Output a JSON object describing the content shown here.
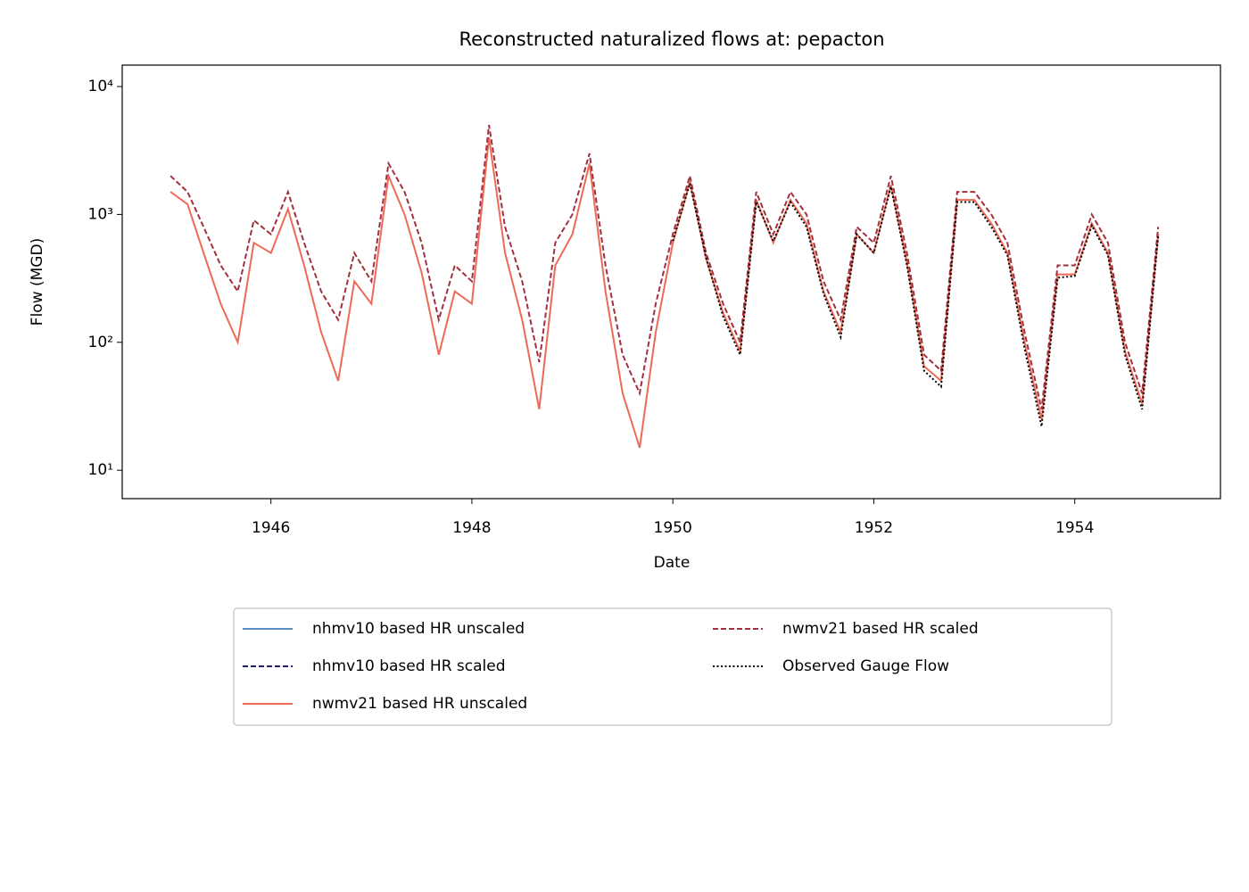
{
  "chart_data": {
    "type": "line",
    "title": "Reconstructed naturalized flows at: pepacton",
    "xlabel": "Date",
    "ylabel": "Flow (MGD)",
    "log_y": true,
    "xlim": [
      1944.52,
      1955.45
    ],
    "xticks": [
      1946,
      1948,
      1950,
      1952,
      1954
    ],
    "ylim": [
      6,
      14700
    ],
    "yticks": [
      {
        "value": 10,
        "label": "10¹"
      },
      {
        "value": 100,
        "label": "10²"
      },
      {
        "value": 1000,
        "label": "10³"
      },
      {
        "value": 10000,
        "label": "10⁴"
      }
    ],
    "legend": "lower center",
    "x": [
      1945.0,
      1945.17,
      1945.33,
      1945.5,
      1945.67,
      1945.83,
      1946.0,
      1946.17,
      1946.33,
      1946.5,
      1946.67,
      1946.83,
      1947.0,
      1947.17,
      1947.33,
      1947.5,
      1947.67,
      1947.83,
      1948.0,
      1948.17,
      1948.33,
      1948.5,
      1948.67,
      1948.83,
      1949.0,
      1949.17,
      1949.33,
      1949.5,
      1949.67,
      1949.83,
      1950.0,
      1950.17,
      1950.33,
      1950.5,
      1950.67,
      1950.83,
      1951.0,
      1951.17,
      1951.33,
      1951.5,
      1951.67,
      1951.83,
      1952.0,
      1952.17,
      1952.33,
      1952.5,
      1952.67,
      1952.83,
      1953.0,
      1953.17,
      1953.33,
      1953.5,
      1953.67,
      1953.83,
      1954.0,
      1954.17,
      1954.33,
      1954.5,
      1954.67,
      1954.83
    ],
    "series": [
      {
        "name": "nhmv10 based HR unscaled",
        "color": "#5b8fc4",
        "linestyle": "solid",
        "values": [
          null,
          null,
          null,
          null,
          null,
          null,
          null,
          null,
          null,
          null,
          null,
          null,
          null,
          null,
          null,
          null,
          null,
          null,
          null,
          null,
          null,
          null,
          null,
          null,
          null,
          null,
          null,
          null,
          null,
          null,
          null,
          null,
          null,
          null,
          null,
          null,
          null,
          null,
          null,
          null,
          null,
          null,
          null,
          null,
          null,
          null,
          null,
          null,
          null,
          null,
          null,
          null,
          null,
          null,
          null,
          null,
          null,
          null,
          null,
          null
        ]
      },
      {
        "name": "nhmv10 based HR scaled",
        "color": "#1f1f6e",
        "linestyle": "dashed",
        "values": [
          null,
          null,
          null,
          null,
          null,
          null,
          null,
          null,
          null,
          null,
          null,
          null,
          null,
          null,
          null,
          null,
          null,
          null,
          null,
          null,
          null,
          null,
          null,
          null,
          null,
          null,
          null,
          null,
          null,
          null,
          null,
          null,
          null,
          null,
          null,
          null,
          null,
          null,
          null,
          null,
          null,
          null,
          null,
          null,
          null,
          null,
          null,
          null,
          null,
          null,
          null,
          null,
          null,
          null,
          null,
          null,
          null,
          null,
          null,
          null
        ]
      },
      {
        "name": "nwmv21 based HR unscaled",
        "color": "#ee6a56",
        "linestyle": "solid",
        "values": [
          1500,
          1200,
          500,
          200,
          100,
          600,
          500,
          1100,
          400,
          120,
          50,
          300,
          200,
          2000,
          1000,
          350,
          80,
          250,
          200,
          4000,
          500,
          150,
          30,
          400,
          700,
          2500,
          250,
          40,
          15,
          120,
          600,
          1800,
          450,
          170,
          85,
          1300,
          600,
          1300,
          850,
          250,
          120,
          700,
          500,
          1700,
          420,
          65,
          50,
          1300,
          1300,
          850,
          500,
          100,
          25,
          340,
          340,
          850,
          500,
          85,
          33,
          700
        ]
      },
      {
        "name": "nwmv21 based HR scaled",
        "color": "#a3303e",
        "linestyle": "dashed",
        "values": [
          2000,
          1500,
          800,
          400,
          250,
          900,
          700,
          1500,
          600,
          250,
          150,
          500,
          300,
          2500,
          1500,
          600,
          150,
          400,
          300,
          5000,
          800,
          300,
          70,
          600,
          1000,
          3000,
          400,
          80,
          40,
          200,
          700,
          2000,
          500,
          200,
          100,
          1500,
          700,
          1500,
          1000,
          300,
          150,
          800,
          600,
          2000,
          500,
          80,
          60,
          1500,
          1500,
          1000,
          600,
          120,
          30,
          400,
          400,
          1000,
          600,
          100,
          40,
          800
        ]
      },
      {
        "name": "Observed Gauge Flow",
        "color": "#000000",
        "linestyle": "dotted",
        "values": [
          null,
          null,
          null,
          null,
          null,
          null,
          null,
          null,
          null,
          null,
          null,
          null,
          null,
          null,
          null,
          null,
          null,
          null,
          null,
          null,
          null,
          null,
          null,
          null,
          null,
          null,
          null,
          null,
          null,
          null,
          620,
          1750,
          460,
          160,
          80,
          1250,
          620,
          1250,
          800,
          240,
          110,
          700,
          500,
          1650,
          400,
          60,
          45,
          1250,
          1250,
          800,
          480,
          90,
          22,
          320,
          330,
          820,
          480,
          80,
          30,
          680
        ]
      }
    ]
  }
}
